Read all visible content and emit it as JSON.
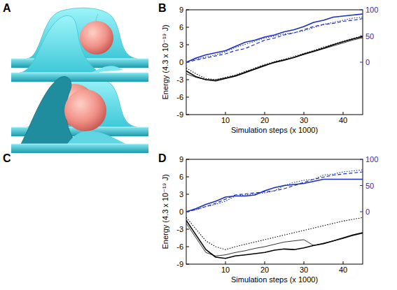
{
  "panel_labels": [
    "A",
    "B",
    "C",
    "D"
  ],
  "chart_data": [
    {
      "type": "line",
      "x_label": "Simulation steps (x 1000)",
      "y_label": "Energy (4.3 x 10⁻¹⁹ J)",
      "x": [
        0,
        2.5,
        5,
        7.5,
        10,
        12.5,
        15,
        17.5,
        20,
        22.5,
        25,
        27.5,
        30,
        32.5,
        35,
        37.5,
        40,
        42.5,
        45
      ],
      "xlim": [
        0,
        45
      ],
      "xticks": [
        10,
        20,
        30,
        40
      ],
      "ylim": [
        -9,
        9
      ],
      "yticks": [
        -9,
        -6,
        -3,
        0,
        3,
        6,
        9
      ],
      "y2lim": [
        -100,
        100
      ],
      "y2ticks": [
        0,
        50,
        100
      ],
      "series": [
        {
          "color": "#1c2fc4",
          "line_style": "solid",
          "axis": "y2",
          "values": [
            0,
            8,
            14,
            18,
            22,
            30,
            38,
            42,
            48,
            52,
            58,
            62,
            68,
            76,
            80,
            86,
            88,
            90,
            92
          ]
        },
        {
          "color": "#1c2fc4",
          "line_style": "dotted",
          "axis": "y2",
          "values": [
            0,
            6,
            10,
            14,
            20,
            28,
            34,
            40,
            46,
            50,
            54,
            56,
            60,
            66,
            72,
            76,
            80,
            84,
            86
          ]
        },
        {
          "color": "#1c2fc4",
          "line_style": "dashed",
          "axis": "y2",
          "values": [
            0,
            4,
            8,
            12,
            16,
            22,
            26,
            34,
            42,
            46,
            52,
            56,
            62,
            68,
            72,
            74,
            78,
            80,
            83
          ]
        },
        {
          "color": "#000000",
          "line_style": "solid",
          "values": [
            -1.5,
            -2.5,
            -3,
            -3.2,
            -2.8,
            -2.4,
            -1.8,
            -1.2,
            -0.6,
            0,
            0.4,
            0.8,
            1.4,
            1.9,
            2.4,
            3.0,
            3.5,
            4.0,
            4.4
          ]
        },
        {
          "color": "#000000",
          "line_style": "dotted",
          "values": [
            -1,
            -2,
            -2.8,
            -3,
            -2.6,
            -2.2,
            -1.6,
            -1,
            -0.4,
            0.1,
            0.5,
            1,
            1.5,
            2,
            2.6,
            3.1,
            3.6,
            4.1,
            4.5
          ]
        },
        {
          "color": "#000000",
          "line_style": "thin",
          "values": [
            -2,
            -2.6,
            -3,
            -3,
            -2.7,
            -2.3,
            -1.7,
            -1.1,
            -0.5,
            -0.1,
            0.3,
            0.8,
            1.3,
            1.8,
            2.3,
            2.8,
            3.3,
            3.8,
            4.2
          ]
        }
      ]
    },
    {
      "type": "line",
      "x_label": "Simulation steps (x 1000)",
      "y_label": "Energy (4.3 x 10⁻¹⁹ J)",
      "x": [
        0,
        2.5,
        5,
        7.5,
        10,
        12.5,
        15,
        17.5,
        20,
        22.5,
        25,
        27.5,
        30,
        32.5,
        35,
        37.5,
        40,
        42.5,
        45
      ],
      "xlim": [
        0,
        45
      ],
      "xticks": [
        10,
        20,
        30,
        40
      ],
      "ylim": [
        -9,
        9
      ],
      "yticks": [
        -9,
        -6,
        -3,
        0,
        3,
        6,
        9
      ],
      "y2lim": [
        -100,
        100
      ],
      "y2ticks": [
        0,
        50,
        100
      ],
      "series": [
        {
          "color": "#1c2fc4",
          "line_style": "solid",
          "axis": "y2",
          "values": [
            0,
            6,
            14,
            20,
            28,
            30,
            30,
            32,
            40,
            46,
            50,
            52,
            54,
            58,
            62,
            62,
            62,
            62,
            62
          ]
        },
        {
          "color": "#1c2fc4",
          "line_style": "dotted",
          "axis": "y2",
          "values": [
            0,
            4,
            10,
            14,
            20,
            30,
            32,
            34,
            36,
            40,
            50,
            56,
            60,
            62,
            70,
            72,
            76,
            78,
            80
          ]
        },
        {
          "color": "#1c2fc4",
          "line_style": "dashed",
          "axis": "y2",
          "values": [
            0,
            4,
            10,
            16,
            24,
            32,
            34,
            36,
            38,
            40,
            44,
            50,
            56,
            62,
            66,
            70,
            72,
            74,
            76
          ]
        },
        {
          "color": "#000000",
          "line_style": "solid",
          "values": [
            -1.5,
            -4,
            -6.5,
            -7.8,
            -8,
            -7.6,
            -7.4,
            -7.2,
            -7,
            -6.6,
            -6.4,
            -6.5,
            -6.2,
            -5.8,
            -5.5,
            -5,
            -4.5,
            -4,
            -3.6
          ]
        },
        {
          "color": "#000000",
          "line_style": "dotted",
          "values": [
            -1,
            -3,
            -5,
            -6,
            -6.5,
            -6,
            -5.6,
            -5.2,
            -4.8,
            -4.4,
            -4,
            -3.6,
            -3.2,
            -2.8,
            -2.4,
            -2,
            -1.6,
            -1.3,
            -1
          ]
        },
        {
          "color": "#000000",
          "line_style": "thin",
          "values": [
            -2,
            -4.5,
            -7,
            -7.6,
            -7.4,
            -7,
            -6.7,
            -6.3,
            -6,
            -5.6,
            -5.2,
            -5,
            -4.8,
            -5.8,
            -5.4,
            -5,
            -4.6,
            -4.1,
            -3.7
          ]
        }
      ]
    }
  ]
}
